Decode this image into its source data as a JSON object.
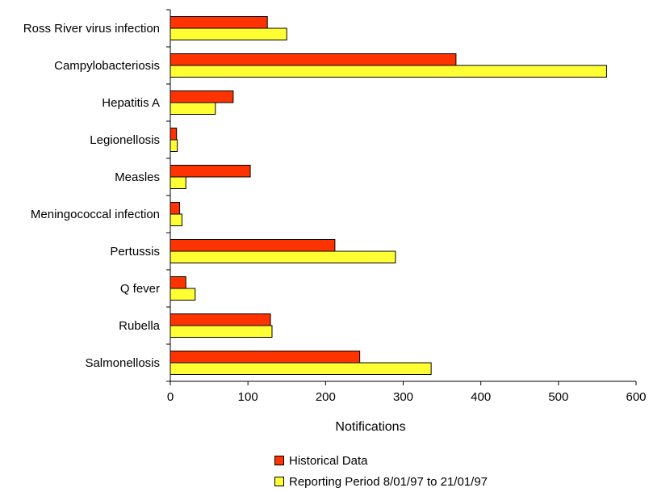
{
  "chart_data": {
    "type": "bar",
    "orientation": "horizontal",
    "title": "",
    "xlabel": "Notifications",
    "ylabel": "",
    "xlim": [
      0,
      600
    ],
    "x_ticks": [
      0,
      100,
      200,
      300,
      400,
      500,
      600
    ],
    "grid": false,
    "legend_position": "bottom",
    "categories": [
      "Ross River virus infection",
      "Campylobacteriosis",
      "Hepatitis A",
      "Legionellosis",
      "Measles",
      "Meningococcal infection",
      "Pertussis",
      "Q fever",
      "Rubella",
      "Salmonellosis"
    ],
    "series": [
      {
        "name": "Historical Data",
        "color": "#ff3300",
        "values": [
          125,
          368,
          81,
          8,
          103,
          12,
          212,
          20,
          129,
          244
        ]
      },
      {
        "name": "Reporting Period 8/01/97 to 21/01/97",
        "color": "#ffff33",
        "values": [
          150,
          562,
          58,
          9,
          20,
          15,
          290,
          32,
          131,
          336
        ]
      }
    ]
  }
}
